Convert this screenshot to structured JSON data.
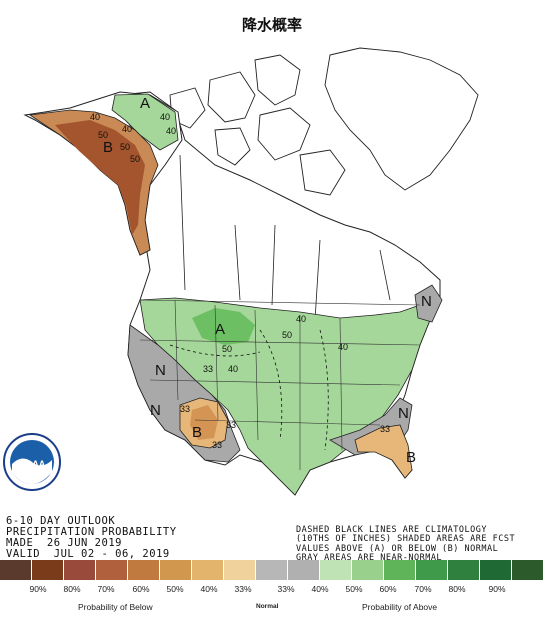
{
  "title": "降水概率",
  "outlook": {
    "line1": "6-10 DAY OUTLOOK",
    "line2": "PRECIPITATION PROBABILITY",
    "line3": "MADE  26 JUN 2019",
    "line4": "VALID  JUL 02 - 06, 2019"
  },
  "note": {
    "line1": "DASHED BLACK LINES ARE CLIMATOLOGY",
    "line2": "(10THS OF INCHES) SHADED AREAS ARE FCST",
    "line3": "VALUES ABOVE (A) OR BELOW (B) NORMAL",
    "line4": "GRAY AREAS ARE NEAR-NORMAL"
  },
  "logo": {
    "text": "NOAA"
  },
  "legend": {
    "colors": [
      "#5b3a2e",
      "#7a3b1b",
      "#9a4a3a",
      "#b0603c",
      "#c07a40",
      "#d2974f",
      "#e2b46c",
      "#f0d29c",
      "#b7b7b7",
      "#b0b0b0",
      "#bfe3b5",
      "#98d08c",
      "#5fb45a",
      "#3f9a4a",
      "#2f7f3f",
      "#1f6a34",
      "#2d5a2b"
    ],
    "ticks": [
      "90%",
      "80%",
      "70%",
      "60%",
      "50%",
      "40%",
      "33%",
      "33%",
      "40%",
      "50%",
      "60%",
      "70%",
      "80%",
      "90%"
    ],
    "below_label": "Probability of Below",
    "normal_label": "Normal",
    "above_label": "Probability of Above"
  },
  "map_labels": {
    "alaska_above": "A",
    "alaska_below": "B",
    "alaska_40a": "40",
    "alaska_40b": "40",
    "alaska_40c": "40",
    "alaska_50a": "50",
    "alaska_50b": "50",
    "alaska_50c": "50",
    "alaska_40d": "40",
    "plains_above": "A",
    "plains_50a": "50",
    "plains_40": "40",
    "plains_50b": "50",
    "plains_40b": "40",
    "west_n1": "N",
    "west_n2": "N",
    "west_33a": "33",
    "west_33b": "33",
    "sw_below": "B",
    "sw_33a": "33",
    "sw_33b": "33",
    "se_below": "B",
    "se_33": "33",
    "se_n": "N",
    "ne_n": "N",
    "east_40": "40"
  }
}
